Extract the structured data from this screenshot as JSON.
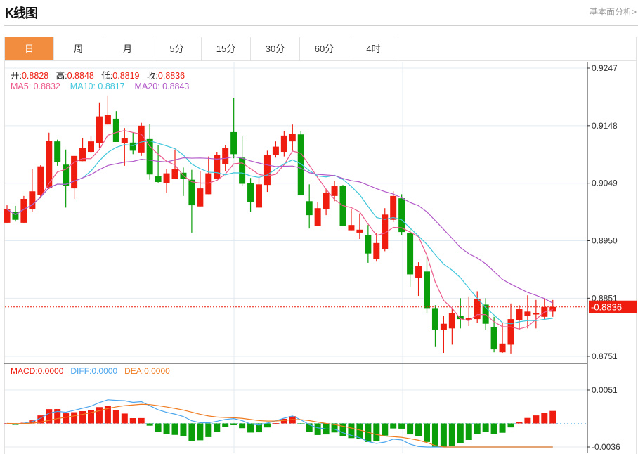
{
  "header": {
    "title": "K线图",
    "more_link": "基本面分析>"
  },
  "tabs": [
    {
      "label": "日",
      "active": true
    },
    {
      "label": "周"
    },
    {
      "label": "月"
    },
    {
      "label": "5分"
    },
    {
      "label": "15分"
    },
    {
      "label": "30分"
    },
    {
      "label": "60分"
    },
    {
      "label": "4时"
    }
  ],
  "ohlc_legend": {
    "open_label": "开:",
    "open": "0.8828",
    "high_label": "高:",
    "high": "0.8848",
    "low_label": "低:",
    "low": "0.8819",
    "close_label": "收:",
    "close": "0.8836"
  },
  "ma_legend": {
    "ma5": "MA5: 0.8832",
    "ma10": "MA10: 0.8817",
    "ma20": "MA20: 0.8843"
  },
  "macd_legend": {
    "macd": "MACD:0.0000",
    "diff": "DIFF:0.0000",
    "dea": "DEA:0.0000"
  },
  "colors": {
    "up": "#ee1d10",
    "down": "#0a9e0a",
    "ma5": "#ec5a8c",
    "ma10": "#3fc6dc",
    "ma20": "#b258c8",
    "diff": "#4ba6ee",
    "dea": "#f07c22",
    "active_tab": "#f28c3e"
  },
  "chart_data": {
    "type": "candlestick",
    "price_axis": {
      "ticks": [
        "0.9247",
        "0.9148",
        "0.9049",
        "0.8950",
        "0.8851",
        "0.8751"
      ],
      "range": [
        0.8751,
        0.9247
      ]
    },
    "current_price": "0.8836",
    "macd_axis": {
      "ticks": [
        "0.0051",
        "-0.0036"
      ],
      "range": [
        -0.0036,
        0.0051
      ]
    },
    "candles": [
      [
        0.8981,
        0.9011,
        0.8981,
        0.9004
      ],
      [
        0.8999,
        0.901,
        0.8983,
        0.8986
      ],
      [
        0.8981,
        0.9027,
        0.8981,
        0.9022
      ],
      [
        0.9004,
        0.9073,
        0.8999,
        0.9035
      ],
      [
        0.9029,
        0.908,
        0.9023,
        0.9078
      ],
      [
        0.9041,
        0.9136,
        0.9039,
        0.9122
      ],
      [
        0.9121,
        0.9124,
        0.9079,
        0.9085
      ],
      [
        0.9081,
        0.9107,
        0.9007,
        0.9044
      ],
      [
        0.904,
        0.9096,
        0.9022,
        0.9096
      ],
      [
        0.9087,
        0.9127,
        0.9087,
        0.911
      ],
      [
        0.9103,
        0.913,
        0.9102,
        0.9121
      ],
      [
        0.9118,
        0.9188,
        0.911,
        0.9164
      ],
      [
        0.915,
        0.92,
        0.915,
        0.9167
      ],
      [
        0.916,
        0.9173,
        0.912,
        0.912
      ],
      [
        0.9118,
        0.9144,
        0.9079,
        0.9126
      ],
      [
        0.9119,
        0.9136,
        0.9099,
        0.9105
      ],
      [
        0.9102,
        0.9153,
        0.9096,
        0.9148
      ],
      [
        0.9125,
        0.9151,
        0.9055,
        0.9064
      ],
      [
        0.9061,
        0.9114,
        0.905,
        0.9051
      ],
      [
        0.9049,
        0.9074,
        0.9032,
        0.9066
      ],
      [
        0.9056,
        0.9107,
        0.9056,
        0.9073
      ],
      [
        0.9067,
        0.9076,
        0.9027,
        0.9056
      ],
      [
        0.9055,
        0.9072,
        0.8964,
        0.9011
      ],
      [
        0.9009,
        0.907,
        0.9009,
        0.904
      ],
      [
        0.903,
        0.9095,
        0.903,
        0.9066
      ],
      [
        0.9056,
        0.9103,
        0.9056,
        0.9097
      ],
      [
        0.9082,
        0.9115,
        0.907,
        0.911
      ],
      [
        0.9137,
        0.9196,
        0.9092,
        0.9099
      ],
      [
        0.9093,
        0.9131,
        0.9045,
        0.9048
      ],
      [
        0.9049,
        0.9058,
        0.9,
        0.9016
      ],
      [
        0.9007,
        0.9059,
        0.9007,
        0.9047
      ],
      [
        0.9046,
        0.9105,
        0.9034,
        0.9098
      ],
      [
        0.9097,
        0.9121,
        0.9093,
        0.9112
      ],
      [
        0.9103,
        0.9139,
        0.9095,
        0.9131
      ],
      [
        0.9121,
        0.915,
        0.9104,
        0.9134
      ],
      [
        0.9133,
        0.9139,
        0.9028,
        0.9028
      ],
      [
        0.9018,
        0.9047,
        0.8971,
        0.8994
      ],
      [
        0.8975,
        0.9016,
        0.8975,
        0.9006
      ],
      [
        0.9005,
        0.9039,
        0.8994,
        0.9032
      ],
      [
        0.9027,
        0.9053,
        0.9018,
        0.9044
      ],
      [
        0.9044,
        0.9046,
        0.8975,
        0.8976
      ],
      [
        0.8968,
        0.9004,
        0.8968,
        0.8977
      ],
      [
        0.8964,
        0.8997,
        0.8953,
        0.8969
      ],
      [
        0.896,
        0.8977,
        0.8912,
        0.8928
      ],
      [
        0.8918,
        0.8963,
        0.8914,
        0.8946
      ],
      [
        0.8936,
        0.9006,
        0.8932,
        0.8995
      ],
      [
        0.8986,
        0.9035,
        0.8982,
        0.9027
      ],
      [
        0.9023,
        0.903,
        0.896,
        0.8965
      ],
      [
        0.8963,
        0.8971,
        0.8871,
        0.8892
      ],
      [
        0.8886,
        0.8913,
        0.8855,
        0.8906
      ],
      [
        0.8897,
        0.8924,
        0.8825,
        0.8834
      ],
      [
        0.8834,
        0.8839,
        0.8767,
        0.8797
      ],
      [
        0.8797,
        0.8821,
        0.8757,
        0.8807
      ],
      [
        0.8799,
        0.8832,
        0.8771,
        0.8825
      ],
      [
        0.882,
        0.8851,
        0.8799,
        0.8815
      ],
      [
        0.8814,
        0.8854,
        0.8803,
        0.8817
      ],
      [
        0.8815,
        0.8863,
        0.8809,
        0.885
      ],
      [
        0.884,
        0.8851,
        0.8797,
        0.8807
      ],
      [
        0.8801,
        0.8819,
        0.8758,
        0.8763
      ],
      [
        0.8758,
        0.8809,
        0.8757,
        0.8773
      ],
      [
        0.8771,
        0.8842,
        0.8756,
        0.8815
      ],
      [
        0.8813,
        0.8839,
        0.8796,
        0.8832
      ],
      [
        0.882,
        0.8856,
        0.8799,
        0.8828
      ],
      [
        0.8823,
        0.8848,
        0.8799,
        0.8825
      ],
      [
        0.8819,
        0.8851,
        0.8815,
        0.8836
      ],
      [
        0.8828,
        0.8848,
        0.8819,
        0.8836
      ]
    ],
    "candle_format": [
      "open",
      "high",
      "low",
      "close"
    ],
    "indicators": [
      "MA5",
      "MA10",
      "MA20",
      "MACD(12,26,9)"
    ]
  }
}
